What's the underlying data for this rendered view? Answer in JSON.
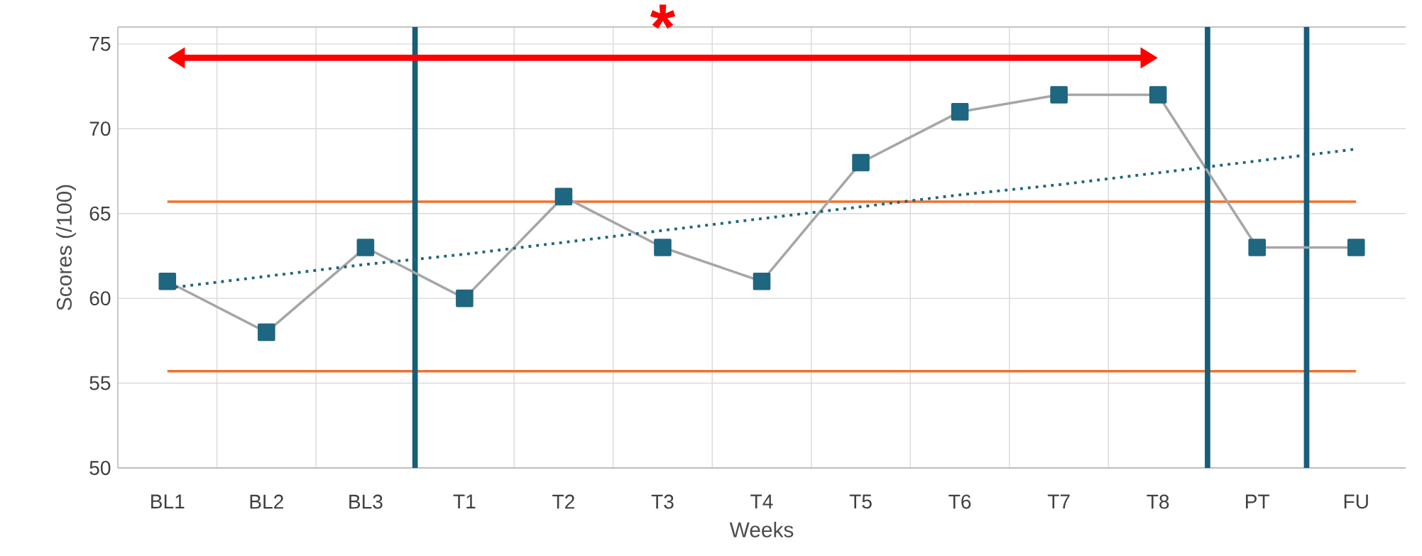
{
  "chart_data": {
    "type": "line",
    "xlabel": "Weeks",
    "ylabel": "Scores (/100)",
    "categories": [
      "BL1",
      "BL2",
      "BL3",
      "T1",
      "T2",
      "T3",
      "T4",
      "T5",
      "T6",
      "T7",
      "T8",
      "PT",
      "FU"
    ],
    "series": [
      {
        "color": "#1f6680",
        "marker": "square",
        "values": [
          61,
          58,
          63,
          60,
          66,
          63,
          61,
          68,
          71,
          72,
          72,
          63,
          63
        ]
      },
      {
        "type": "line",
        "color": "#1f6680",
        "marker": "none",
        "line_style": "dotted",
        "values": [
          60.6,
          61.3,
          62.0,
          62.6,
          63.3,
          64.0,
          64.7,
          65.4,
          66.1,
          66.7,
          67.4,
          68.1,
          68.8
        ]
      }
    ],
    "ylim": [
      50,
      76
    ],
    "yticks": [
      50,
      55,
      60,
      65,
      70,
      75
    ],
    "grid": true,
    "ref_lines": [
      {
        "axis": "y",
        "value": 65.7,
        "color": "#ee7330"
      },
      {
        "axis": "y",
        "value": 55.7,
        "color": "#ee7330"
      }
    ],
    "annotations": [
      "*"
    ]
  }
}
